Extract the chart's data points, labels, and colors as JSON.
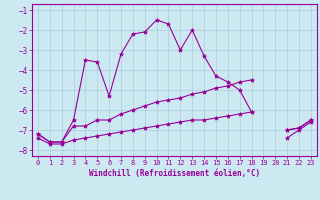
{
  "xlabel": "Windchill (Refroidissement éolien,°C)",
  "x_values": [
    0,
    1,
    2,
    3,
    4,
    5,
    6,
    7,
    8,
    9,
    10,
    11,
    12,
    13,
    14,
    15,
    16,
    17,
    18,
    19,
    20,
    21,
    22,
    23
  ],
  "line1": [
    -7.2,
    -7.6,
    -7.6,
    -6.5,
    -3.5,
    -3.6,
    -5.3,
    -3.2,
    -2.2,
    -2.1,
    -1.5,
    -1.7,
    -3.0,
    -2.0,
    -3.3,
    -4.3,
    -4.6,
    -5.0,
    -6.1,
    null,
    null,
    -7.0,
    -6.9,
    -6.5
  ],
  "line2": [
    -7.2,
    -7.6,
    -7.6,
    -6.8,
    -6.8,
    -6.5,
    -6.5,
    -6.2,
    -6.0,
    -5.8,
    -5.6,
    -5.5,
    -5.4,
    -5.2,
    -5.1,
    -4.9,
    -4.8,
    -4.6,
    -4.5,
    null,
    null,
    -7.0,
    -6.9,
    -6.5
  ],
  "line3": [
    -7.4,
    -7.7,
    -7.7,
    -7.5,
    -7.4,
    -7.3,
    -7.2,
    -7.1,
    -7.0,
    -6.9,
    -6.8,
    -6.7,
    -6.6,
    -6.5,
    -6.5,
    -6.4,
    -6.3,
    -6.2,
    -6.1,
    null,
    null,
    -7.4,
    -7.0,
    -6.6
  ],
  "ylim": [
    -8.3,
    -0.7
  ],
  "xlim": [
    -0.5,
    23.5
  ],
  "yticks": [
    -8,
    -7,
    -6,
    -5,
    -4,
    -3,
    -2,
    -1
  ],
  "xticks": [
    0,
    1,
    2,
    3,
    4,
    5,
    6,
    7,
    8,
    9,
    10,
    11,
    12,
    13,
    14,
    15,
    16,
    17,
    18,
    19,
    20,
    21,
    22,
    23
  ],
  "line_color": "#990099",
  "bg_color": "#cce8f0",
  "grid_color": "#aaccdd",
  "marker": "*",
  "markersize": 3,
  "linewidth": 0.8,
  "tick_fontsize": 5.0,
  "xlabel_fontsize": 5.5
}
